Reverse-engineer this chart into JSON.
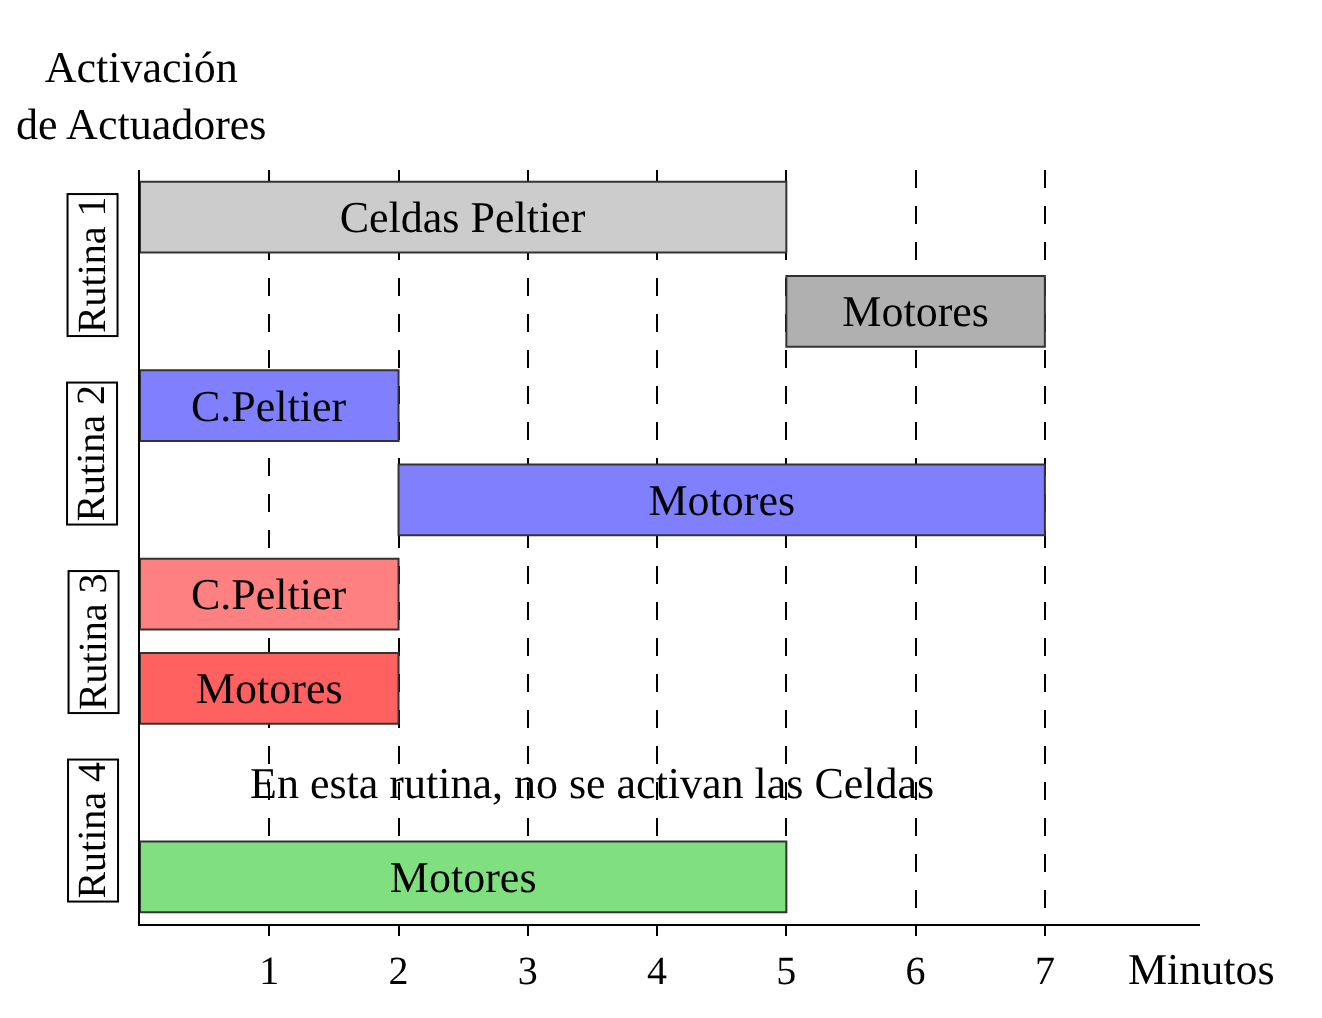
{
  "chart_data": {
    "type": "bar",
    "orientation": "horizontal",
    "xlabel": "Minutos",
    "ylabel": "Activación de Actuadores",
    "categories": [
      null,
      null,
      null,
      null,
      null,
      null,
      null,
      null
    ],
    "values": [
      5,
      2,
      2,
      5,
      2,
      2,
      null,
      5
    ],
    "base": [
      0,
      5,
      0,
      2,
      0,
      0,
      null,
      0
    ],
    "colors": [
      "#cccccc",
      "#b0b0b0",
      "#8080ff",
      "#8080ff",
      "#ff8080",
      "#ff6060",
      null,
      "#80e080"
    ],
    "value_labels": [
      "Celdas Peltier",
      "Motores",
      "C.Peltier",
      "Motores",
      "C.Peltier",
      "Motores",
      null,
      "Motores"
    ],
    "xlim": [
      0,
      8.2
    ],
    "xticks": [
      1,
      2,
      3,
      4,
      5,
      6,
      7
    ],
    "grid": "x",
    "tick_labels": "x",
    "annotations": [
      "Rutina 1",
      "Rutina 2",
      "Rutina 3",
      "Rutina 4",
      "En esta rutina, no se activan las Celdas"
    ]
  }
}
